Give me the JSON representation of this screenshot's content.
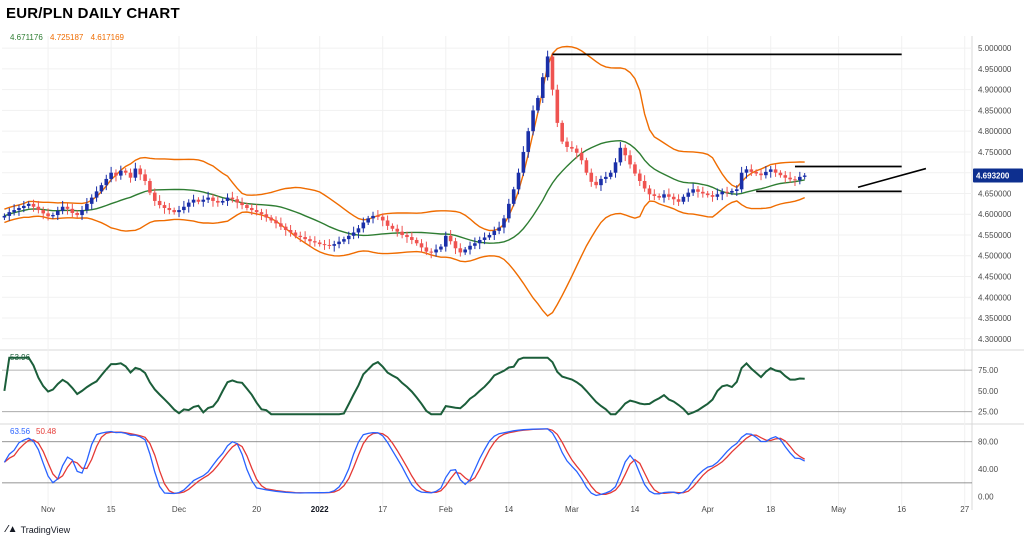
{
  "title": "EUR/PLN DAILY CHART",
  "ma_values": [
    {
      "text": "4.671176",
      "color": "#2e7d32"
    },
    {
      "text": "4.725187",
      "color": "#ef6c00"
    },
    {
      "text": "4.617169",
      "color": "#ef6c00"
    }
  ],
  "price_label": {
    "text": "4.693200",
    "color": "#0d2f8f"
  },
  "footer": {
    "brand": "TradingView"
  },
  "chart_data": [
    {
      "type": "candlestick",
      "title": "EUR/PLN DAILY CHART",
      "y_ticks": [
        5.0,
        4.95,
        4.9,
        4.85,
        4.8,
        4.75,
        4.7,
        4.65,
        4.6,
        4.55,
        4.5,
        4.45,
        4.4,
        4.35,
        4.3
      ],
      "y_tick_labels": [
        "5.000000",
        "4.950000",
        "4.900000",
        "4.850000",
        "4.800000",
        "4.750000",
        "4.700000",
        "4.650000",
        "4.600000",
        "4.550000",
        "4.500000",
        "4.450000",
        "4.400000",
        "4.350000",
        "4.300000"
      ],
      "ylim": [
        4.285,
        5.01
      ],
      "x_ticks": [
        {
          "label": "Nov",
          "bold": false
        },
        {
          "label": "15",
          "bold": false
        },
        {
          "label": "Dec",
          "bold": false
        },
        {
          "label": "20",
          "bold": false
        },
        {
          "label": "2022",
          "bold": true
        },
        {
          "label": "17",
          "bold": false
        },
        {
          "label": "Feb",
          "bold": false
        },
        {
          "label": "14",
          "bold": false
        },
        {
          "label": "Mar",
          "bold": false
        },
        {
          "label": "14",
          "bold": false
        },
        {
          "label": "Apr",
          "bold": false
        },
        {
          "label": "18",
          "bold": false
        },
        {
          "label": "May",
          "bold": false
        },
        {
          "label": "16",
          "bold": false
        },
        {
          "label": "27",
          "bold": false
        }
      ],
      "x_tick_index": [
        9,
        22,
        36,
        52,
        65,
        78,
        91,
        104,
        117,
        130,
        145,
        158,
        172,
        185,
        198
      ],
      "closes": [
        4.596,
        4.605,
        4.61,
        4.615,
        4.62,
        4.625,
        4.618,
        4.61,
        4.602,
        4.595,
        4.598,
        4.608,
        4.618,
        4.613,
        4.603,
        4.598,
        4.61,
        4.625,
        4.64,
        4.655,
        4.67,
        4.685,
        4.7,
        4.693,
        4.705,
        4.7,
        4.688,
        4.71,
        4.696,
        4.68,
        4.652,
        4.632,
        4.622,
        4.615,
        4.61,
        4.605,
        4.61,
        4.618,
        4.628,
        4.635,
        4.63,
        4.635,
        4.64,
        4.632,
        4.628,
        4.632,
        4.64,
        4.636,
        4.628,
        4.622,
        4.615,
        4.61,
        4.605,
        4.6,
        4.592,
        4.585,
        4.578,
        4.57,
        4.562,
        4.556,
        4.548,
        4.545,
        4.54,
        4.535,
        4.532,
        4.528,
        4.526,
        4.524,
        4.528,
        4.534,
        4.54,
        4.548,
        4.556,
        4.566,
        4.58,
        4.59,
        4.596,
        4.594,
        4.585,
        4.572,
        4.565,
        4.558,
        4.55,
        4.545,
        4.538,
        4.53,
        4.52,
        4.51,
        4.508,
        4.515,
        4.522,
        4.548,
        4.535,
        4.518,
        4.508,
        4.515,
        4.524,
        4.53,
        4.538,
        4.544,
        4.55,
        4.56,
        4.568,
        4.59,
        4.625,
        4.66,
        4.7,
        4.75,
        4.8,
        4.85,
        4.88,
        4.93,
        4.98,
        4.9,
        4.82,
        4.775,
        4.762,
        4.758,
        4.748,
        4.73,
        4.7,
        4.678,
        4.67,
        4.685,
        4.69,
        4.7,
        4.725,
        4.76,
        4.742,
        4.72,
        4.698,
        4.68,
        4.662,
        4.648,
        4.644,
        4.64,
        4.648,
        4.642,
        4.636,
        4.63,
        4.642,
        4.652,
        4.66,
        4.654,
        4.65,
        4.646,
        4.642,
        4.648,
        4.654,
        4.652,
        4.656,
        4.66,
        4.7,
        4.708,
        4.702,
        4.698,
        4.694,
        4.702,
        4.708,
        4.7,
        4.694,
        4.688,
        4.684,
        4.682,
        4.69,
        4.6932
      ],
      "indicators": {
        "bollinger": {
          "upper_color": "#ef6c00",
          "lower_color": "#ef6c00",
          "mid_color": "#2e7d32"
        },
        "rsi": {
          "value_label": "53.96",
          "levels": [
            75,
            50,
            25
          ],
          "level_labels": [
            "75.00",
            "50.00",
            "25.00"
          ]
        },
        "stochastic": {
          "k_label": "63.56",
          "d_label": "50.48",
          "k_color": "#2962ff",
          "d_color": "#e53935",
          "levels": [
            80,
            40,
            0
          ],
          "level_labels": [
            "80.00",
            "40.00",
            "0.00"
          ],
          "bands": [
            80,
            20
          ]
        }
      },
      "annotations": [
        {
          "type": "hline",
          "value": 4.985,
          "from_index": 113,
          "to_index": 185
        },
        {
          "type": "hline",
          "value": 4.715,
          "from_index": 163,
          "to_index": 185
        },
        {
          "type": "hline",
          "value": 4.655,
          "from_index": 155,
          "to_index": 185
        },
        {
          "type": "trendline",
          "from_index": 176,
          "from_value": 4.665,
          "to_index": 190,
          "to_value": 4.71
        }
      ]
    }
  ]
}
